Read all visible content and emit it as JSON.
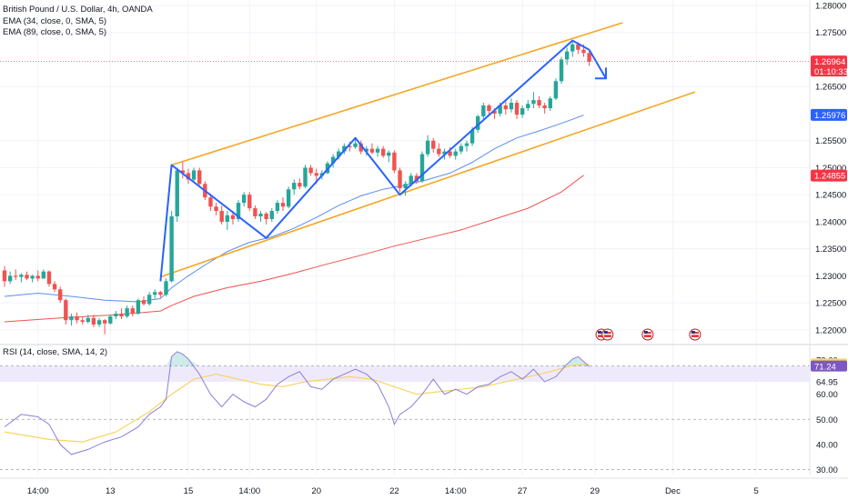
{
  "header": {
    "symbol_line": "British Pound / U.S. Dollar, 4h, OANDA",
    "ema1": "EMA (34, close, 0, SMA, 5)",
    "ema2": "EMA (89, close, 0, SMA, 5)",
    "rsi": "RSI (14, close, SMA, 14, 2)"
  },
  "colors": {
    "up": "#26a69a",
    "down": "#ef5350",
    "channel": "#f5a623",
    "pattern": "#2962ff",
    "ema34": "#5b8def",
    "ema89": "#ef5350",
    "rsi": "#8c7fd6",
    "rsi_ma": "#f7d560",
    "axis_text": "#131722",
    "grid": "#f0f3fa",
    "band": "#efeafb",
    "badge_blue": "#2962ff",
    "badge_red": "#f23645",
    "badge_yellow": "#f7d560",
    "badge_purple": "#7e57c2"
  },
  "chart_data": [
    {
      "type": "candlestick",
      "title": "British Pound / U.S. Dollar, 4h, OANDA",
      "x_tick_labels": [
        "14:00",
        "13",
        "15",
        "14:00",
        "20",
        "22",
        "14:00",
        "27",
        "29",
        "Dec",
        "5"
      ],
      "y_tick_labels": [
        "1.22000",
        "1.22500",
        "1.23000",
        "1.23500",
        "1.24000",
        "1.24500",
        "1.25000",
        "1.25500",
        "1.26500",
        "1.27500",
        "1.28000"
      ],
      "ylim": [
        1.2178,
        1.2805
      ],
      "candles": [
        [
          1.231,
          1.2318,
          1.228,
          1.229
        ],
        [
          1.229,
          1.2308,
          1.2285,
          1.23
        ],
        [
          1.23,
          1.2312,
          1.2292,
          1.2298
        ],
        [
          1.2298,
          1.2305,
          1.2288,
          1.2302
        ],
        [
          1.2302,
          1.2308,
          1.2292,
          1.2295
        ],
        [
          1.2295,
          1.2302,
          1.2288,
          1.23
        ],
        [
          1.23,
          1.231,
          1.229,
          1.2295
        ],
        [
          1.2295,
          1.2312,
          1.2295,
          1.2308
        ],
        [
          1.2308,
          1.231,
          1.228,
          1.2285
        ],
        [
          1.2285,
          1.229,
          1.227,
          1.2275
        ],
        [
          1.2275,
          1.228,
          1.225,
          1.2255
        ],
        [
          1.2255,
          1.2258,
          1.221,
          1.2218
        ],
        [
          1.2218,
          1.223,
          1.2208,
          1.2225
        ],
        [
          1.2225,
          1.2232,
          1.2212,
          1.2218
        ],
        [
          1.2218,
          1.2225,
          1.221,
          1.2215
        ],
        [
          1.2215,
          1.2228,
          1.2212,
          1.2222
        ],
        [
          1.2222,
          1.2228,
          1.2205,
          1.221
        ],
        [
          1.221,
          1.2222,
          1.2205,
          1.2218
        ],
        [
          1.2218,
          1.222,
          1.2192,
          1.2212
        ],
        [
          1.2212,
          1.2228,
          1.221,
          1.2225
        ],
        [
          1.2225,
          1.2235,
          1.222,
          1.223
        ],
        [
          1.223,
          1.224,
          1.222,
          1.2225
        ],
        [
          1.2225,
          1.2245,
          1.2222,
          1.224
        ],
        [
          1.224,
          1.2245,
          1.2225,
          1.223
        ],
        [
          1.223,
          1.2258,
          1.2228,
          1.2255
        ],
        [
          1.2255,
          1.2262,
          1.2245,
          1.2248
        ],
        [
          1.2248,
          1.227,
          1.2245,
          1.2265
        ],
        [
          1.2265,
          1.2275,
          1.2258,
          1.227
        ],
        [
          1.227,
          1.2272,
          1.226,
          1.2265
        ],
        [
          1.2265,
          1.2295,
          1.2262,
          1.229
        ],
        [
          1.229,
          1.242,
          1.2288,
          1.241
        ],
        [
          1.241,
          1.25,
          1.24,
          1.2495
        ],
        [
          1.2495,
          1.251,
          1.248,
          1.249
        ],
        [
          1.249,
          1.2498,
          1.247,
          1.2478
        ],
        [
          1.2478,
          1.25,
          1.2472,
          1.2495
        ],
        [
          1.2495,
          1.25,
          1.2465,
          1.247
        ],
        [
          1.247,
          1.2475,
          1.244,
          1.2445
        ],
        [
          1.2445,
          1.2452,
          1.242,
          1.2428
        ],
        [
          1.2428,
          1.2435,
          1.2412,
          1.242
        ],
        [
          1.242,
          1.243,
          1.2395,
          1.24
        ],
        [
          1.24,
          1.242,
          1.2385,
          1.2412
        ],
        [
          1.2412,
          1.242,
          1.2395,
          1.2405
        ],
        [
          1.2405,
          1.244,
          1.24,
          1.2435
        ],
        [
          1.2435,
          1.2455,
          1.2428,
          1.245
        ],
        [
          1.245,
          1.2455,
          1.242,
          1.2425
        ],
        [
          1.2425,
          1.243,
          1.2405,
          1.241
        ],
        [
          1.241,
          1.242,
          1.24,
          1.2415
        ],
        [
          1.2415,
          1.2418,
          1.2395,
          1.2405
        ],
        [
          1.2405,
          1.2425,
          1.24,
          1.242
        ],
        [
          1.242,
          1.244,
          1.2415,
          1.2435
        ],
        [
          1.2435,
          1.2445,
          1.242,
          1.2428
        ],
        [
          1.2428,
          1.2465,
          1.2425,
          1.246
        ],
        [
          1.246,
          1.2478,
          1.245,
          1.2472
        ],
        [
          1.2472,
          1.248,
          1.246,
          1.2465
        ],
        [
          1.2465,
          1.2505,
          1.2462,
          1.25
        ],
        [
          1.25,
          1.2505,
          1.2485,
          1.249
        ],
        [
          1.249,
          1.2498,
          1.247,
          1.2485
        ],
        [
          1.2485,
          1.2495,
          1.2478,
          1.249
        ],
        [
          1.249,
          1.2512,
          1.2488,
          1.2508
        ],
        [
          1.2508,
          1.2525,
          1.25,
          1.252
        ],
        [
          1.252,
          1.2535,
          1.2515,
          1.253
        ],
        [
          1.253,
          1.2545,
          1.2525,
          1.254
        ],
        [
          1.254,
          1.2548,
          1.253,
          1.2538
        ],
        [
          1.2538,
          1.2552,
          1.2535,
          1.2545
        ],
        [
          1.2545,
          1.255,
          1.2525,
          1.253
        ],
        [
          1.253,
          1.254,
          1.2522,
          1.2535
        ],
        [
          1.2535,
          1.2545,
          1.2525,
          1.2528
        ],
        [
          1.2528,
          1.254,
          1.252,
          1.2535
        ],
        [
          1.2535,
          1.254,
          1.2518,
          1.2522
        ],
        [
          1.2522,
          1.2532,
          1.251,
          1.2528
        ],
        [
          1.2528,
          1.2532,
          1.249,
          1.2495
        ],
        [
          1.2495,
          1.25,
          1.2455,
          1.2462
        ],
        [
          1.2462,
          1.2475,
          1.2448,
          1.247
        ],
        [
          1.247,
          1.249,
          1.2465,
          1.2485
        ],
        [
          1.2485,
          1.249,
          1.247,
          1.2475
        ],
        [
          1.2475,
          1.253,
          1.2472,
          1.2525
        ],
        [
          1.2525,
          1.256,
          1.252,
          1.255
        ],
        [
          1.255,
          1.2555,
          1.2528,
          1.2535
        ],
        [
          1.2535,
          1.2545,
          1.252,
          1.2525
        ],
        [
          1.2525,
          1.2535,
          1.2515,
          1.253
        ],
        [
          1.253,
          1.2538,
          1.2518,
          1.2522
        ],
        [
          1.2522,
          1.2535,
          1.2515,
          1.253
        ],
        [
          1.253,
          1.2545,
          1.2525,
          1.254
        ],
        [
          1.254,
          1.255,
          1.253,
          1.2545
        ],
        [
          1.2545,
          1.2575,
          1.254,
          1.257
        ],
        [
          1.257,
          1.2598,
          1.2565,
          1.2595
        ],
        [
          1.2595,
          1.262,
          1.259,
          1.2615
        ],
        [
          1.2615,
          1.2618,
          1.2595,
          1.2605
        ],
        [
          1.2605,
          1.261,
          1.259,
          1.26
        ],
        [
          1.26,
          1.262,
          1.2595,
          1.2615
        ],
        [
          1.2615,
          1.2625,
          1.2598,
          1.2608
        ],
        [
          1.2608,
          1.2628,
          1.2602,
          1.262
        ],
        [
          1.262,
          1.2625,
          1.259,
          1.2598
        ],
        [
          1.2598,
          1.2615,
          1.2592,
          1.261
        ],
        [
          1.261,
          1.2625,
          1.2605,
          1.2618
        ],
        [
          1.2618,
          1.264,
          1.261,
          1.2625
        ],
        [
          1.2625,
          1.2632,
          1.261,
          1.2615
        ],
        [
          1.2615,
          1.262,
          1.26,
          1.261
        ],
        [
          1.261,
          1.2632,
          1.2605,
          1.2628
        ],
        [
          1.2628,
          1.2665,
          1.2625,
          1.266
        ],
        [
          1.266,
          1.2705,
          1.2655,
          1.27
        ],
        [
          1.27,
          1.2722,
          1.269,
          1.2715
        ],
        [
          1.2715,
          1.2735,
          1.2705,
          1.2728
        ],
        [
          1.2728,
          1.2732,
          1.271,
          1.2718
        ],
        [
          1.2718,
          1.2728,
          1.2705,
          1.2712
        ],
        [
          1.2712,
          1.2718,
          1.2688,
          1.2696
        ]
      ],
      "ema34": [
        [
          0,
          1.2262
        ],
        [
          6,
          1.2268
        ],
        [
          12,
          1.2262
        ],
        [
          18,
          1.2255
        ],
        [
          24,
          1.2252
        ],
        [
          28,
          1.2258
        ],
        [
          30,
          1.2278
        ],
        [
          33,
          1.23
        ],
        [
          36,
          1.232
        ],
        [
          40,
          1.2345
        ],
        [
          44,
          1.2362
        ],
        [
          48,
          1.2372
        ],
        [
          52,
          1.2388
        ],
        [
          56,
          1.2408
        ],
        [
          60,
          1.243
        ],
        [
          64,
          1.2448
        ],
        [
          68,
          1.246
        ],
        [
          72,
          1.2468
        ],
        [
          76,
          1.2478
        ],
        [
          80,
          1.249
        ],
        [
          84,
          1.251
        ],
        [
          88,
          1.2535
        ],
        [
          92,
          1.2555
        ],
        [
          96,
          1.2568
        ],
        [
          100,
          1.2582
        ],
        [
          104,
          1.2597
        ]
      ],
      "ema89": [
        [
          0,
          1.2215
        ],
        [
          10,
          1.2222
        ],
        [
          20,
          1.2228
        ],
        [
          28,
          1.2235
        ],
        [
          30,
          1.2245
        ],
        [
          34,
          1.2262
        ],
        [
          40,
          1.2278
        ],
        [
          46,
          1.229
        ],
        [
          52,
          1.2305
        ],
        [
          58,
          1.2322
        ],
        [
          64,
          1.2338
        ],
        [
          70,
          1.2355
        ],
        [
          76,
          1.237
        ],
        [
          82,
          1.2385
        ],
        [
          88,
          1.2405
        ],
        [
          94,
          1.2425
        ],
        [
          100,
          1.2455
        ],
        [
          104,
          1.2486
        ]
      ],
      "channel_upper": [
        [
          30,
          1.2505
        ],
        [
          111,
          1.2768
        ]
      ],
      "channel_lower": [
        [
          28,
          1.2298
        ],
        [
          124,
          1.264
        ]
      ],
      "pattern": [
        [
          28,
          1.229
        ],
        [
          30,
          1.2505
        ],
        [
          47,
          1.237
        ],
        [
          63,
          1.2555
        ],
        [
          71,
          1.245
        ],
        [
          102,
          1.2735
        ],
        [
          105,
          1.2718
        ]
      ],
      "arrow_tip": [
        108,
        1.2665
      ],
      "last_price": "1.26964",
      "countdown": "01:10:33",
      "ema34_last": "1.25976",
      "ema89_last": "1.24855"
    },
    {
      "type": "line",
      "title": "RSI (14, close, SMA, 14, 2)",
      "y_tick_labels": [
        "30.00",
        "40.00",
        "50.00",
        "60.00",
        "64.95",
        "73.60"
      ],
      "ylim": [
        28,
        78
      ],
      "band": [
        64.95,
        71.24
      ],
      "rsi_last": "71.24",
      "rsi_ma_last": "72.06",
      "rsi": [
        [
          0,
          47
        ],
        [
          3,
          52
        ],
        [
          6,
          51
        ],
        [
          8,
          48
        ],
        [
          10,
          40
        ],
        [
          12,
          36
        ],
        [
          15,
          38
        ],
        [
          18,
          41
        ],
        [
          21,
          43
        ],
        [
          24,
          47
        ],
        [
          26,
          52
        ],
        [
          28,
          55
        ],
        [
          29,
          58
        ],
        [
          30,
          75
        ],
        [
          31,
          77
        ],
        [
          32,
          76
        ],
        [
          33,
          74
        ],
        [
          35,
          68
        ],
        [
          37,
          60
        ],
        [
          39,
          55
        ],
        [
          41,
          60
        ],
        [
          43,
          57
        ],
        [
          45,
          55
        ],
        [
          47,
          58
        ],
        [
          49,
          64
        ],
        [
          51,
          67
        ],
        [
          53,
          69
        ],
        [
          55,
          63
        ],
        [
          57,
          62
        ],
        [
          59,
          66
        ],
        [
          61,
          68
        ],
        [
          63,
          70
        ],
        [
          65,
          68
        ],
        [
          67,
          64
        ],
        [
          69,
          55
        ],
        [
          70,
          48
        ],
        [
          71,
          52
        ],
        [
          73,
          55
        ],
        [
          75,
          60
        ],
        [
          77,
          66
        ],
        [
          79,
          60
        ],
        [
          81,
          62
        ],
        [
          83,
          60
        ],
        [
          85,
          63
        ],
        [
          87,
          64
        ],
        [
          89,
          67
        ],
        [
          91,
          69
        ],
        [
          93,
          66
        ],
        [
          95,
          70
        ],
        [
          97,
          65
        ],
        [
          99,
          67
        ],
        [
          101,
          72
        ],
        [
          102,
          74
        ],
        [
          103,
          75
        ],
        [
          104,
          73
        ],
        [
          105,
          71
        ]
      ],
      "rsi_ma": [
        [
          0,
          45
        ],
        [
          8,
          42
        ],
        [
          14,
          41
        ],
        [
          20,
          45
        ],
        [
          26,
          53
        ],
        [
          30,
          60
        ],
        [
          34,
          66
        ],
        [
          38,
          68
        ],
        [
          42,
          66
        ],
        [
          46,
          64
        ],
        [
          50,
          63
        ],
        [
          54,
          65
        ],
        [
          58,
          66
        ],
        [
          62,
          67
        ],
        [
          66,
          66
        ],
        [
          70,
          63
        ],
        [
          74,
          60
        ],
        [
          78,
          61
        ],
        [
          82,
          62
        ],
        [
          86,
          63
        ],
        [
          90,
          65
        ],
        [
          94,
          67
        ],
        [
          98,
          69
        ],
        [
          102,
          71.5
        ],
        [
          105,
          72
        ]
      ]
    }
  ]
}
